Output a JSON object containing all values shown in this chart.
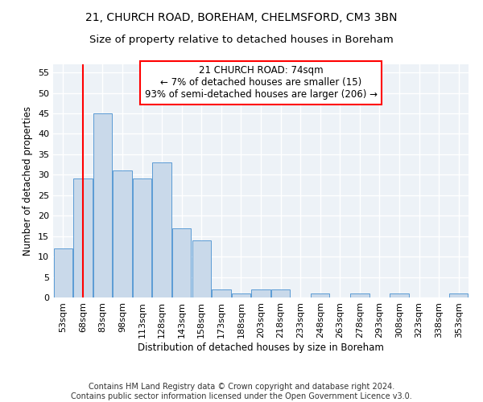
{
  "title_line1": "21, CHURCH ROAD, BOREHAM, CHELMSFORD, CM3 3BN",
  "title_line2": "Size of property relative to detached houses in Boreham",
  "xlabel": "Distribution of detached houses by size in Boreham",
  "ylabel": "Number of detached properties",
  "categories": [
    "53sqm",
    "68sqm",
    "83sqm",
    "98sqm",
    "113sqm",
    "128sqm",
    "143sqm",
    "158sqm",
    "173sqm",
    "188sqm",
    "203sqm",
    "218sqm",
    "233sqm",
    "248sqm",
    "263sqm",
    "278sqm",
    "293sqm",
    "308sqm",
    "323sqm",
    "338sqm",
    "353sqm"
  ],
  "values": [
    12,
    29,
    45,
    31,
    29,
    33,
    17,
    14,
    2,
    1,
    2,
    2,
    0,
    1,
    0,
    1,
    0,
    1,
    0,
    0,
    1
  ],
  "bar_color": "#c9d9ea",
  "bar_edge_color": "#5b9bd5",
  "reference_line_x": 1,
  "reference_line_color": "red",
  "annotation_text": "21 CHURCH ROAD: 74sqm\n← 7% of detached houses are smaller (15)\n93% of semi-detached houses are larger (206) →",
  "annotation_box_color": "white",
  "annotation_box_edge_color": "red",
  "ylim": [
    0,
    57
  ],
  "yticks": [
    0,
    5,
    10,
    15,
    20,
    25,
    30,
    35,
    40,
    45,
    50,
    55
  ],
  "footer_line1": "Contains HM Land Registry data © Crown copyright and database right 2024.",
  "footer_line2": "Contains public sector information licensed under the Open Government Licence v3.0.",
  "background_color": "#edf2f7",
  "grid_color": "#ffffff",
  "title_fontsize": 10,
  "subtitle_fontsize": 9.5,
  "axis_label_fontsize": 8.5,
  "tick_fontsize": 8,
  "annotation_fontsize": 8.5,
  "footer_fontsize": 7
}
